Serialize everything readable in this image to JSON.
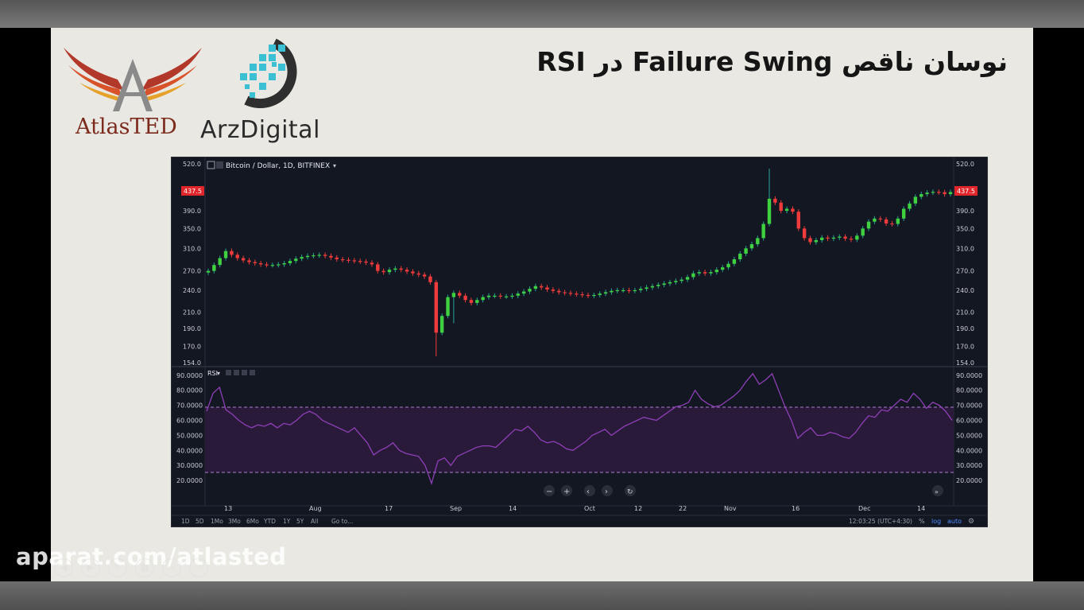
{
  "slide": {
    "title": "نوسان ناقص Failure Swing در RSI",
    "watermark": "aparat.com/atlasted"
  },
  "logos": {
    "left": "AtlasTED",
    "right": "ArzDigital"
  },
  "colors": {
    "up": "#26a69a",
    "up_bright": "#3fd13f",
    "down": "#ef3b3b",
    "rsi_line": "#8e3fb7",
    "rsi_band": "#2a1a3a",
    "price_badge": "#e0262a",
    "background": "#131722"
  },
  "chart": {
    "header": "Bitcoin / Dollar, 1D, BITFINEX",
    "rsi_label": "RSI",
    "last_price": "437.5",
    "price_ticks": [
      "520.0",
      "390.0",
      "350.0",
      "310.0",
      "270.0",
      "240.0",
      "210.0",
      "190.0",
      "170.0",
      "154.0"
    ],
    "rsi_ticks": [
      "90.0000",
      "80.0000",
      "70.0000",
      "60.0000",
      "50.0000",
      "40.0000",
      "30.0000",
      "20.0000"
    ],
    "x_ticks": [
      "13",
      "Aug",
      "17",
      "Sep",
      "14",
      "Oct",
      "12",
      "22",
      "Nov",
      "16",
      "Dec",
      "14"
    ],
    "ranges": [
      "1D",
      "5D",
      "1Mo",
      "3Mo",
      "6Mo",
      "YTD",
      "1Y",
      "5Y",
      "All",
      "Go to..."
    ],
    "status_time": "12:03:25 (UTC+4:30)",
    "status_right": [
      "%",
      "log",
      "auto"
    ],
    "nav_icons": [
      "minus-icon",
      "plus-icon",
      "chevron-left-icon",
      "chevron-right-icon",
      "reset-icon",
      "scroll-right-icon"
    ]
  },
  "chart_data": {
    "type": "candlestick",
    "title": "Bitcoin / Dollar, 1D, BITFINEX",
    "price_scale": "log",
    "price_ylim": [
      154,
      520
    ],
    "rsi_ylim": [
      10,
      92
    ],
    "rsi_levels": [
      70,
      30
    ],
    "candles_close": [
      270,
      280,
      292,
      305,
      298,
      292,
      288,
      285,
      283,
      281,
      280,
      280,
      281,
      283,
      287,
      291,
      294,
      296,
      297,
      298,
      296,
      293,
      290,
      289,
      288,
      287,
      286,
      284,
      281,
      270,
      268,
      272,
      274,
      272,
      269,
      266,
      264,
      261,
      252,
      185,
      205,
      230,
      236,
      232,
      226,
      222,
      226,
      230,
      232,
      232,
      231,
      231,
      232,
      235,
      238,
      242,
      246,
      244,
      241,
      239,
      237,
      236,
      235,
      234,
      233,
      232,
      233,
      235,
      237,
      239,
      240,
      240,
      239,
      240,
      242,
      244,
      246,
      248,
      250,
      252,
      254,
      256,
      260,
      266,
      268,
      266,
      268,
      272,
      276,
      282,
      290,
      300,
      310,
      318,
      330,
      360,
      420,
      410,
      390,
      395,
      388,
      350,
      330,
      322,
      326,
      331,
      329,
      331,
      333,
      329,
      327,
      335,
      350,
      365,
      372,
      370,
      361,
      360,
      372,
      395,
      408,
      425,
      432,
      436,
      438,
      437,
      432,
      437.5
    ],
    "rsi": [
      66,
      78,
      82,
      67,
      64,
      60,
      57,
      55,
      57,
      56,
      58,
      55,
      58,
      57,
      60,
      64,
      66,
      64,
      60,
      58,
      56,
      54,
      52,
      55,
      50,
      45,
      37,
      40,
      42,
      45,
      40,
      38,
      37,
      36,
      30,
      18,
      33,
      35,
      30,
      36,
      38,
      40,
      42,
      43,
      43,
      42,
      46,
      50,
      54,
      53,
      56,
      52,
      47,
      45,
      46,
      44,
      41,
      40,
      43,
      46,
      50,
      52,
      54,
      50,
      53,
      56,
      58,
      60,
      62,
      61,
      60,
      63,
      66,
      69,
      70,
      72,
      80,
      74,
      71,
      69,
      70,
      73,
      76,
      80,
      86,
      91,
      84,
      87,
      91,
      80,
      69,
      60,
      48,
      52,
      55,
      50,
      50,
      52,
      51,
      49,
      48,
      52,
      58,
      63,
      62,
      67,
      66,
      70,
      74,
      72,
      78,
      74,
      68,
      72,
      70,
      66,
      60
    ]
  }
}
